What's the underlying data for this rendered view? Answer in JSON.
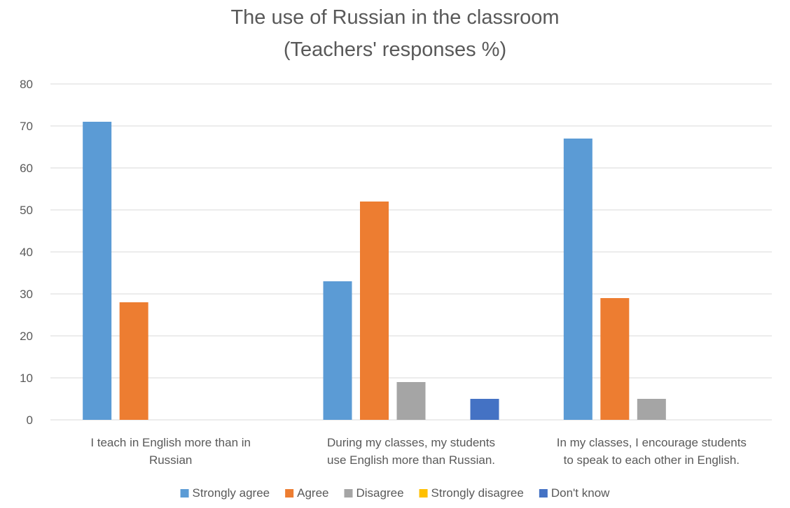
{
  "chart_data": {
    "type": "bar",
    "title": "The use of Russian in the classroom",
    "subtitle": "(Teachers' responses %)",
    "xlabel": "",
    "ylabel": "",
    "ylim": [
      0,
      80
    ],
    "yticks": [
      "0",
      "10",
      "20",
      "30",
      "40",
      "50",
      "60",
      "70",
      "80"
    ],
    "grid": true,
    "legend_position": "bottom",
    "categories": [
      [
        "I teach in English more than in",
        "Russian"
      ],
      [
        "During my classes, my students",
        "use English more than Russian."
      ],
      [
        "In my classes, I encourage students",
        "to speak to each other in English."
      ]
    ],
    "series": [
      {
        "name": "Strongly agree",
        "color": "#5b9bd5",
        "values": [
          71,
          33,
          67
        ]
      },
      {
        "name": "Agree",
        "color": "#ed7d31",
        "values": [
          28,
          52,
          29
        ]
      },
      {
        "name": "Disagree",
        "color": "#a5a5a5",
        "values": [
          0,
          9,
          5
        ]
      },
      {
        "name": "Strongly disagree",
        "color": "#ffc000",
        "values": [
          0,
          0,
          0
        ]
      },
      {
        "name": "Don't know",
        "color": "#4472c4",
        "values": [
          0,
          5,
          0
        ]
      }
    ]
  }
}
